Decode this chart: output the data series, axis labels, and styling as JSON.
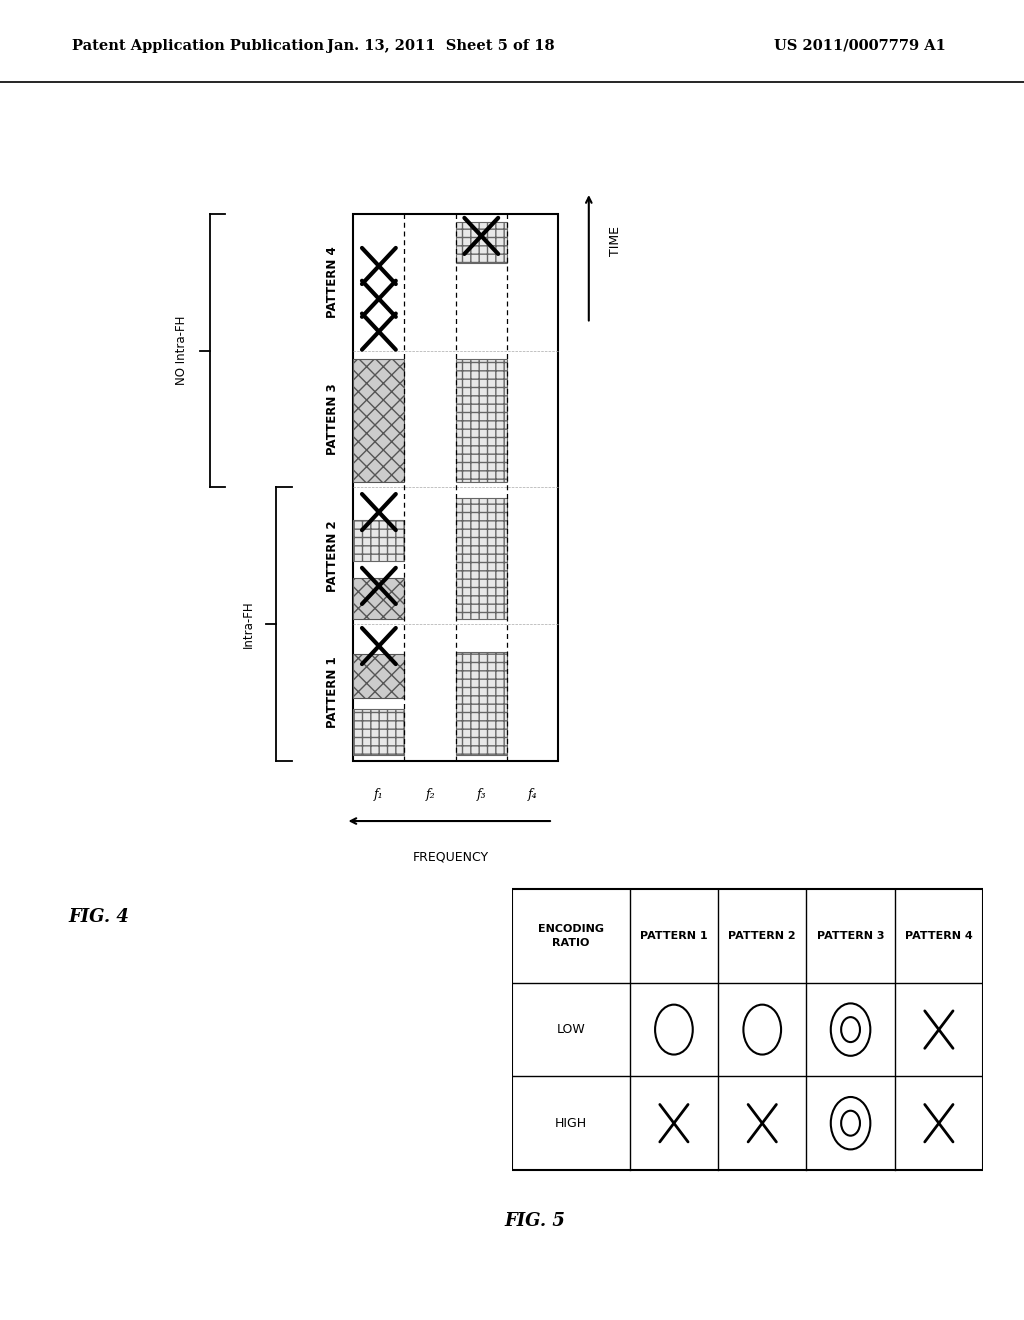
{
  "header_left": "Patent Application Publication",
  "header_mid": "Jan. 13, 2011  Sheet 5 of 18",
  "header_right": "US 2011/0007779 A1",
  "fig4_label": "FIG. 4",
  "fig5_label": "FIG. 5",
  "background_color": "#ffffff",
  "text_color": "#000000",
  "freq_labels": [
    "f₁",
    "f₂",
    "f₃",
    "f₄"
  ],
  "pattern_labels": [
    "PATTERN 1",
    "PATTERN 2",
    "PATTERN 3",
    "PATTERN 4"
  ],
  "intra_fh_label": "Intra-FH",
  "no_intra_fh_label": "NO Intra-FH",
  "time_label": "TIME",
  "freq_axis_label": "FREQUENCY",
  "table_col_headers": [
    "PATTERN 1",
    "PATTERN 2",
    "PATTERN 3",
    "PATTERN 4"
  ],
  "table_row_headers": [
    "ENCODING RATIO",
    "LOW",
    "HIGH"
  ],
  "table_data": [
    [
      "○",
      "○",
      "◎",
      "×"
    ],
    [
      "×",
      "×",
      "◎",
      "×"
    ]
  ]
}
